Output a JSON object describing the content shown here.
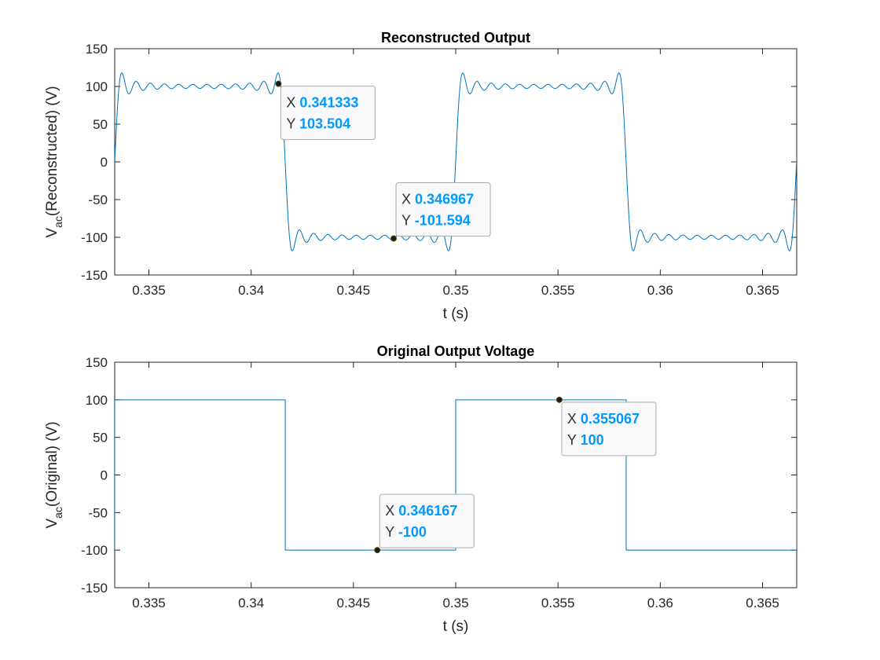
{
  "colors": {
    "series": "#0072bd",
    "axis": "#262626",
    "tip_border": "#aaaaaa",
    "tip_bg": "#f9f9fc",
    "tip_value": "#0099ff",
    "marker": "#1a1a1a"
  },
  "chart_data": [
    {
      "type": "line",
      "title": "Reconstructed Output",
      "xlabel": "t (s)",
      "ylabel_main": "V",
      "ylabel_sub": "ac",
      "ylabel_rest": "(Reconstructed) (V)",
      "xlim": [
        0.33333,
        0.36667
      ],
      "ylim": [
        -150,
        150
      ],
      "xticks": [
        0.335,
        0.34,
        0.345,
        0.35,
        0.355,
        0.36,
        0.365
      ],
      "xtick_labels": [
        "0.335",
        "0.34",
        "0.345",
        "0.35",
        "0.355",
        "0.36",
        "0.365"
      ],
      "yticks": [
        150,
        100,
        50,
        0,
        -50,
        -100,
        -150
      ],
      "ytick_labels": [
        "150",
        "100",
        "50",
        "0",
        "-50",
        "-100",
        "-150"
      ],
      "signal": {
        "kind": "fourier-square",
        "amplitude": 100,
        "period": 0.016667,
        "rising_edges": [
          0.33333,
          0.35
        ],
        "falling_edges": [
          0.341667,
          0.358333
        ],
        "ripple_cycles_per_half_period": 12,
        "overshoot_peak": 117
      },
      "datatips": [
        {
          "x": 0.341333,
          "y": 103.504,
          "x_label": "X",
          "y_label": "Y",
          "x_text": "0.341333",
          "y_text": "103.504",
          "box": "right-below"
        },
        {
          "x": 0.346967,
          "y": -101.594,
          "x_label": "X",
          "y_label": "Y",
          "x_text": "0.346967",
          "y_text": "-101.594",
          "box": "right-above"
        }
      ]
    },
    {
      "type": "line",
      "title": "Original Output Voltage",
      "xlabel": "t (s)",
      "ylabel_main": "V",
      "ylabel_sub": "ac",
      "ylabel_rest": "(Original) (V)",
      "xlim": [
        0.33333,
        0.36667
      ],
      "ylim": [
        -150,
        150
      ],
      "xticks": [
        0.335,
        0.34,
        0.345,
        0.35,
        0.355,
        0.36,
        0.365
      ],
      "xtick_labels": [
        "0.335",
        "0.34",
        "0.345",
        "0.35",
        "0.355",
        "0.36",
        "0.365"
      ],
      "yticks": [
        150,
        100,
        50,
        0,
        -50,
        -100,
        -150
      ],
      "ytick_labels": [
        "150",
        "100",
        "50",
        "0",
        "-50",
        "-100",
        "-150"
      ],
      "signal": {
        "kind": "square",
        "amplitude": 100,
        "period": 0.016667,
        "rising_edges": [
          0.33333,
          0.35
        ],
        "falling_edges": [
          0.341667,
          0.358333
        ]
      },
      "datatips": [
        {
          "x": 0.355067,
          "y": 100,
          "x_label": "X",
          "y_label": "Y",
          "x_text": "0.355067",
          "y_text": "100",
          "box": "right-below"
        },
        {
          "x": 0.346167,
          "y": -100,
          "x_label": "X",
          "y_label": "Y",
          "x_text": "0.346167",
          "y_text": "-100",
          "box": "right-above"
        }
      ]
    }
  ]
}
